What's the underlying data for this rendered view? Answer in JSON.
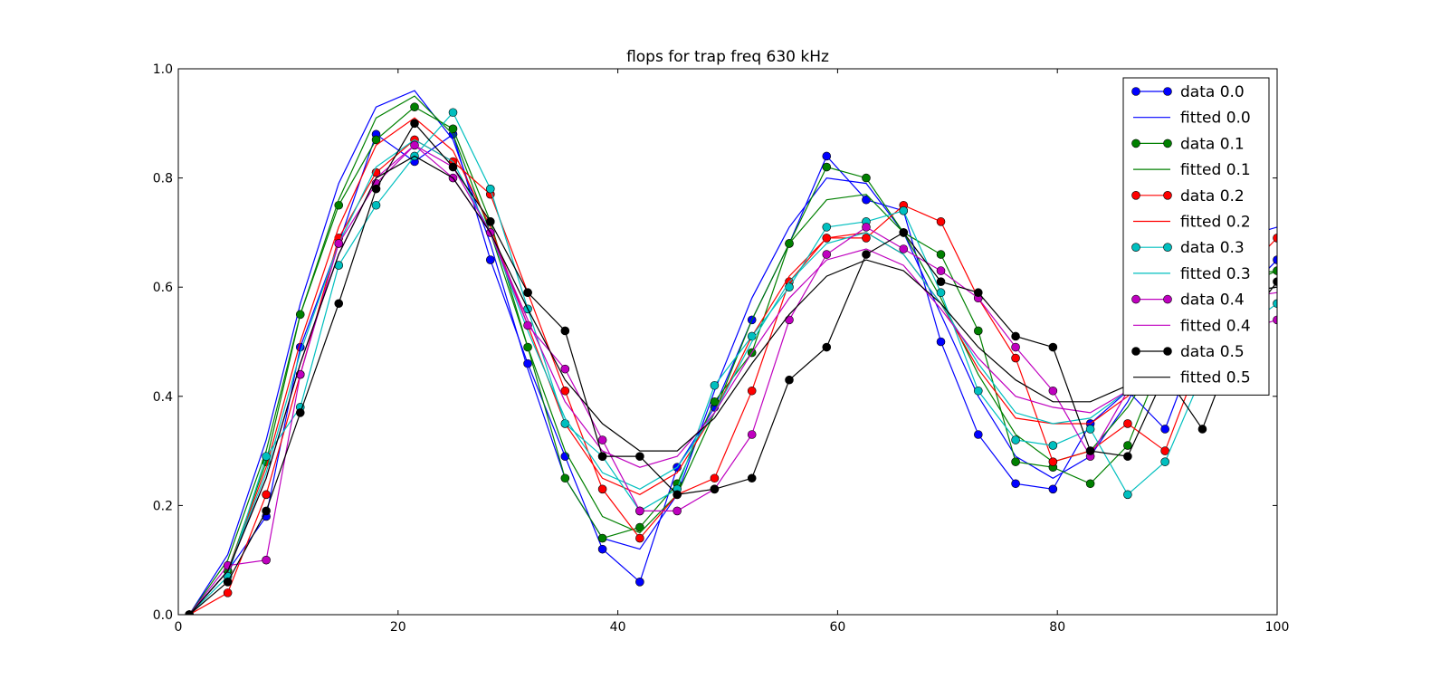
{
  "chart_data": {
    "type": "line",
    "title": "flops for trap freq 630 kHz",
    "xlabel": "",
    "ylabel": "",
    "xlim": [
      0,
      100
    ],
    "ylim": [
      0,
      1.0
    ],
    "x_ticks": [
      0,
      20,
      40,
      60,
      80,
      100
    ],
    "y_ticks": [
      0.0,
      0.2,
      0.4,
      0.6,
      0.8,
      1.0
    ],
    "x_tick_labels": [
      "0",
      "20",
      "40",
      "60",
      "80",
      "100"
    ],
    "y_tick_labels": [
      "0.0",
      "0.2",
      "0.4",
      "0.6",
      "0.8",
      "1.0"
    ],
    "grid": false,
    "legend_position": "top-right",
    "x": [
      1.0,
      4.5,
      8.0,
      11.1,
      14.6,
      18.0,
      21.5,
      25.0,
      28.4,
      31.8,
      35.2,
      38.6,
      42.0,
      45.4,
      48.8,
      52.2,
      55.6,
      59.0,
      62.6,
      66.0,
      69.4,
      72.8,
      76.2,
      79.6,
      83.0,
      86.4,
      89.8,
      93.2,
      96.6,
      100.0
    ],
    "series": [
      {
        "name": "data 0.0",
        "kind": "data",
        "color": "#0000ff",
        "values": [
          0.0,
          0.08,
          0.18,
          0.49,
          0.68,
          0.88,
          0.83,
          0.88,
          0.65,
          0.46,
          0.29,
          0.12,
          0.06,
          0.27,
          0.38,
          0.54,
          0.68,
          0.84,
          0.76,
          0.74,
          0.5,
          0.33,
          0.24,
          0.23,
          0.35,
          0.41,
          0.34,
          0.52,
          0.58,
          0.65
        ]
      },
      {
        "name": "fitted 0.0",
        "kind": "fit",
        "color": "#0000ff",
        "values": [
          0.0,
          0.11,
          0.32,
          0.57,
          0.79,
          0.93,
          0.96,
          0.87,
          0.68,
          0.45,
          0.25,
          0.14,
          0.12,
          0.22,
          0.41,
          0.58,
          0.71,
          0.8,
          0.79,
          0.7,
          0.55,
          0.4,
          0.29,
          0.25,
          0.29,
          0.39,
          0.52,
          0.63,
          0.69,
          0.71
        ]
      },
      {
        "name": "data 0.1",
        "kind": "data",
        "color": "#008000",
        "values": [
          0.0,
          0.08,
          0.28,
          0.55,
          0.75,
          0.87,
          0.93,
          0.89,
          0.72,
          0.49,
          0.25,
          0.14,
          0.16,
          0.24,
          0.39,
          0.48,
          0.68,
          0.82,
          0.8,
          0.7,
          0.66,
          0.52,
          0.28,
          0.27,
          0.24,
          0.31,
          0.48,
          0.55,
          0.6,
          0.63
        ]
      },
      {
        "name": "fitted 0.1",
        "kind": "fit",
        "color": "#008000",
        "values": [
          0.0,
          0.1,
          0.3,
          0.55,
          0.76,
          0.91,
          0.95,
          0.88,
          0.7,
          0.49,
          0.3,
          0.18,
          0.15,
          0.22,
          0.37,
          0.54,
          0.68,
          0.76,
          0.77,
          0.7,
          0.58,
          0.44,
          0.33,
          0.28,
          0.3,
          0.38,
          0.49,
          0.58,
          0.62,
          0.63
        ]
      },
      {
        "name": "data 0.2",
        "kind": "data",
        "color": "#ff0000",
        "values": [
          0.0,
          0.04,
          0.22,
          0.44,
          0.69,
          0.81,
          0.87,
          0.83,
          0.77,
          0.59,
          0.41,
          0.23,
          0.14,
          0.22,
          0.25,
          0.41,
          0.61,
          0.69,
          0.69,
          0.75,
          0.72,
          0.58,
          0.47,
          0.28,
          0.3,
          0.35,
          0.3,
          0.48,
          0.62,
          0.69
        ]
      },
      {
        "name": "fitted 0.2",
        "kind": "fit",
        "color": "#ff0000",
        "values": [
          0.0,
          0.08,
          0.27,
          0.5,
          0.71,
          0.86,
          0.91,
          0.85,
          0.71,
          0.53,
          0.35,
          0.25,
          0.22,
          0.26,
          0.37,
          0.51,
          0.62,
          0.69,
          0.7,
          0.66,
          0.57,
          0.45,
          0.36,
          0.35,
          0.35,
          0.4,
          0.48,
          0.55,
          0.59,
          0.6
        ]
      },
      {
        "name": "data 0.3",
        "kind": "data",
        "color": "#00bfbf",
        "values": [
          0.0,
          0.07,
          0.29,
          0.38,
          0.64,
          0.75,
          0.84,
          0.92,
          0.78,
          0.56,
          0.35,
          0.29,
          0.19,
          0.23,
          0.42,
          0.51,
          0.6,
          0.71,
          0.72,
          0.74,
          0.59,
          0.41,
          0.32,
          0.31,
          0.34,
          0.22,
          0.28,
          0.44,
          0.52,
          0.57
        ]
      },
      {
        "name": "fitted 0.3",
        "kind": "fit",
        "color": "#00bfbf",
        "values": [
          0.0,
          0.08,
          0.26,
          0.48,
          0.68,
          0.82,
          0.87,
          0.83,
          0.7,
          0.52,
          0.36,
          0.26,
          0.23,
          0.27,
          0.37,
          0.5,
          0.61,
          0.68,
          0.7,
          0.66,
          0.57,
          0.46,
          0.37,
          0.35,
          0.36,
          0.41,
          0.49,
          0.56,
          0.59,
          0.6
        ]
      },
      {
        "name": "data 0.4",
        "kind": "data",
        "color": "#bf00bf",
        "values": [
          0.0,
          0.09,
          0.1,
          0.44,
          0.68,
          0.79,
          0.86,
          0.8,
          0.7,
          0.53,
          0.45,
          0.32,
          0.19,
          0.19,
          0.23,
          0.33,
          0.54,
          0.66,
          0.71,
          0.67,
          0.63,
          0.58,
          0.49,
          0.41,
          0.29,
          0.41,
          0.43,
          0.49,
          0.52,
          0.54
        ]
      },
      {
        "name": "fitted 0.4",
        "kind": "fit",
        "color": "#bf00bf",
        "values": [
          0.0,
          0.08,
          0.25,
          0.46,
          0.66,
          0.8,
          0.86,
          0.82,
          0.7,
          0.54,
          0.39,
          0.3,
          0.27,
          0.29,
          0.37,
          0.48,
          0.58,
          0.65,
          0.67,
          0.64,
          0.56,
          0.47,
          0.4,
          0.38,
          0.37,
          0.41,
          0.48,
          0.55,
          0.58,
          0.59
        ]
      },
      {
        "name": "data 0.5",
        "kind": "data",
        "color": "#000000",
        "values": [
          0.0,
          0.06,
          0.19,
          0.37,
          0.57,
          0.78,
          0.9,
          0.82,
          0.72,
          0.59,
          0.52,
          0.29,
          0.29,
          0.22,
          0.23,
          0.25,
          0.43,
          0.49,
          0.66,
          0.7,
          0.61,
          0.59,
          0.51,
          0.49,
          0.3,
          0.29,
          0.44,
          0.34,
          0.52,
          0.61
        ]
      },
      {
        "name": "fitted 0.5",
        "kind": "fit",
        "color": "#000000",
        "values": [
          0.0,
          0.08,
          0.25,
          0.46,
          0.66,
          0.8,
          0.84,
          0.8,
          0.7,
          0.56,
          0.43,
          0.35,
          0.3,
          0.3,
          0.36,
          0.46,
          0.55,
          0.62,
          0.65,
          0.63,
          0.57,
          0.49,
          0.43,
          0.39,
          0.39,
          0.42,
          0.48,
          0.55,
          0.59,
          0.6
        ]
      }
    ]
  }
}
